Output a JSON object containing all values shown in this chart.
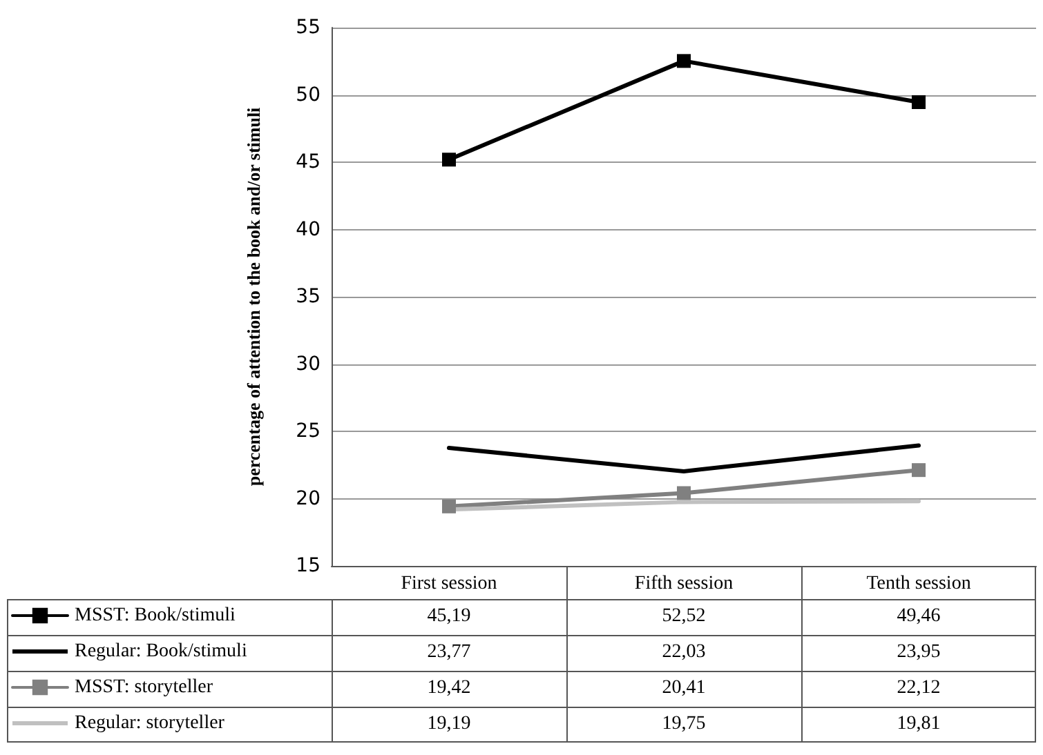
{
  "chart_data": {
    "type": "line",
    "ylabel": "percentage of attention to the book and/or stimuli",
    "categories": [
      "First session",
      "Fifth session",
      "Tenth session"
    ],
    "series": [
      {
        "name": "MSST: Book/stimuli",
        "color": "#000000",
        "marker": "square",
        "values": [
          45.19,
          52.52,
          49.46
        ],
        "value_labels": [
          "45,19",
          "52,52",
          "49,46"
        ]
      },
      {
        "name": "Regular: Book/stimuli",
        "color": "#000000",
        "marker": "none",
        "values": [
          23.77,
          22.03,
          23.95
        ],
        "value_labels": [
          "23,77",
          "22,03",
          "23,95"
        ]
      },
      {
        "name": "MSST: storyteller",
        "color": "#808080",
        "marker": "square",
        "values": [
          19.42,
          20.41,
          22.12
        ],
        "value_labels": [
          "19,42",
          "20,41",
          "22,12"
        ]
      },
      {
        "name": "Regular: storyteller",
        "color": "#c0c0c0",
        "marker": "none",
        "values": [
          19.19,
          19.75,
          19.81
        ],
        "value_labels": [
          "19,19",
          "19,75",
          "19,81"
        ]
      }
    ],
    "ylim": [
      15,
      55
    ],
    "yticks": [
      15,
      20,
      25,
      30,
      35,
      40,
      45,
      50,
      55
    ],
    "grid": "y",
    "legend": "bottom"
  }
}
